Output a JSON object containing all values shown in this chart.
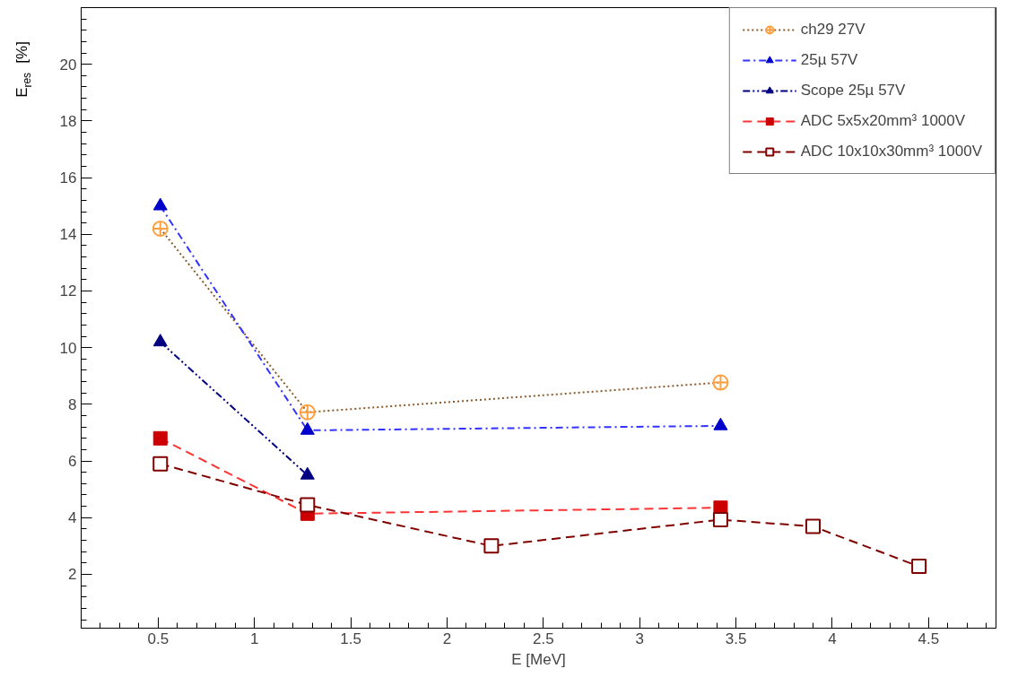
{
  "chart_data": {
    "type": "line",
    "xlabel": "E [MeV]",
    "ylabel": "E$_{res}$ [%]",
    "xlim": [
      0.1,
      4.85
    ],
    "ylim": [
      0.1,
      22
    ],
    "xticks": [
      0.5,
      1,
      1.5,
      2,
      2.5,
      3,
      3.5,
      4,
      4.5
    ],
    "yticks": [
      2,
      4,
      6,
      8,
      10,
      12,
      14,
      16,
      18,
      20
    ],
    "grid": false,
    "legend": "top right",
    "series": [
      {
        "name": "ch29 27V",
        "color": "#8b5a2b",
        "colors": [
          "#ffa040",
          "#ffa040",
          "#ffa040"
        ],
        "marker": "circle_cross",
        "line_style": "dotted",
        "x": [
          0.511,
          1.275,
          3.42
        ],
        "values": [
          14.2,
          7.72,
          8.77
        ]
      },
      {
        "name": "25µ 57V",
        "color": "#3333ff",
        "colors": [
          "#0000cc",
          "#0000cc",
          "#0000cc"
        ],
        "marker": "triangle",
        "line_style": "dashdot",
        "x": [
          0.511,
          1.275,
          3.42
        ],
        "values": [
          15.0,
          7.08,
          7.24
        ]
      },
      {
        "name": "Scope 25µ 57V",
        "color": "#000080",
        "colors": [
          "#000080",
          "#000080"
        ],
        "marker": "triangle",
        "line_style": "dashdotdot",
        "x": [
          0.511,
          1.275
        ],
        "values": [
          10.2,
          5.5
        ]
      },
      {
        "name": "ADC 5x5x20mm³ 1000V",
        "color": "#ff3333",
        "colors": [
          "#cc0000",
          "#cc0000",
          "#cc0000"
        ],
        "marker": "square",
        "line_style": "dashed",
        "x": [
          0.511,
          1.275,
          3.42
        ],
        "values": [
          6.8,
          4.14,
          4.35
        ]
      },
      {
        "name": "ADC 10x10x30mm³ 1000V",
        "color": "#800000",
        "colors": [
          "#800000",
          "#800000",
          "#800000",
          "#800000",
          "#800000",
          "#800000"
        ],
        "marker": "square_open",
        "line_style": "dashed",
        "x": [
          0.511,
          1.275,
          2.23,
          3.42,
          3.9,
          4.45
        ],
        "values": [
          5.9,
          4.45,
          3.0,
          3.93,
          3.69,
          2.28
        ]
      }
    ]
  }
}
